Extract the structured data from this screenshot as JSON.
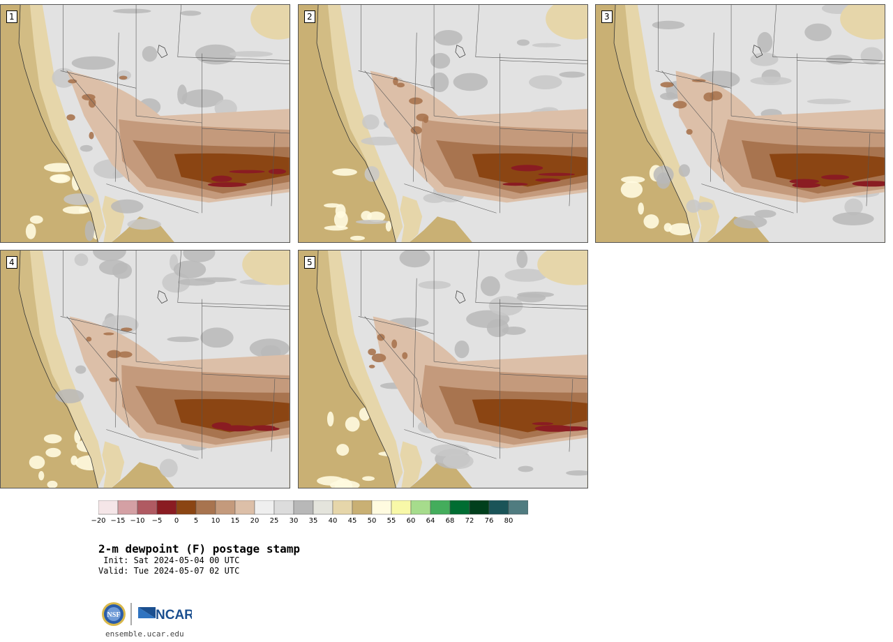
{
  "panels": [
    {
      "label": "1"
    },
    {
      "label": "2"
    },
    {
      "label": "3"
    },
    {
      "label": "4"
    },
    {
      "label": "5"
    }
  ],
  "colorbar": {
    "tick_labels": [
      "−20",
      "−15",
      "−10",
      "−5",
      "0",
      "5",
      "10",
      "15",
      "20",
      "25",
      "30",
      "35",
      "40",
      "45",
      "50",
      "55",
      "60",
      "64",
      "68",
      "72",
      "76",
      "80"
    ],
    "colors": [
      "#f5e6e8",
      "#d4a0a4",
      "#b05a62",
      "#8a1c22",
      "#8b4513",
      "#a8744f",
      "#c49a7c",
      "#dcbfa8",
      "#efefef",
      "#dcdcdc",
      "#b8b8b8",
      "#e4e4dc",
      "#e6d6aa",
      "#c9b074",
      "#fffbe0",
      "#f8f8a8",
      "#a6dc8c",
      "#44ad5c",
      "#006d32",
      "#013f1c",
      "#1a5458",
      "#507c80"
    ]
  },
  "title": "2-m dewpoint (F) postage stamp",
  "init": " Init: Sat 2024-05-04 00 UTC",
  "valid": "Valid: Tue 2024-05-07 02 UTC",
  "logos": {
    "nsf": "NSF",
    "ncar": "NCAR"
  },
  "url": "ensemble.ucar.edu"
}
